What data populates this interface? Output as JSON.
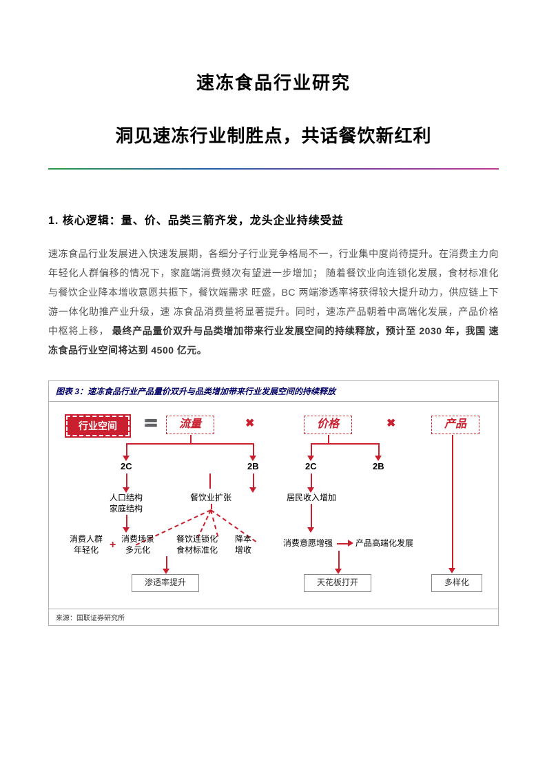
{
  "title": {
    "main": "速冻食品行业研究",
    "sub": "洞见速冻行业制胜点，共话餐饮新红利"
  },
  "section1": {
    "heading": "1. 核心逻辑：量、价、品类三箭齐发，龙头企业持续受益",
    "body_pre": "速冻食品行业发展进入快速发展期，各细分子行业竞争格局不一，行业集中度尚待提升。在消费主力向年轻化人群偏移的情况下，家庭端消费频次有望进一步增加； 随着餐饮业向连锁化发展，食材标准化与餐饮企业降本增收意愿共振下，餐饮端需求 旺盛，BC 两端渗透率将获得较大提升动力，供应链上下游一体化助推产业升级，速 冻食品消费量将显著提升。同时，速冻产品朝着中高端化发展，产品价格中枢将上移，",
    "body_bold": "最终产品量价双升与品类增加带来行业发展空间的持续释放，预计至 2030 年，我国 速冻食品行业空间将达到 4500 亿元。"
  },
  "figure": {
    "title": "图表 3：速冻食品行业产品量价双升与品类增加带来行业发展空间的持续释放",
    "source": "来源：国联证券研究所",
    "colors": {
      "accent": "#c91f2e",
      "border": "#b0b0b0",
      "title_text": "#000066"
    },
    "nodes": {
      "root": "行业空间",
      "op_eq": "🟰",
      "op_mul": "✖",
      "top": {
        "flow": "流量",
        "price": "价格",
        "product": "产品"
      },
      "mid": {
        "c2_a": "2C",
        "b2_a": "2B",
        "c2_b": "2C",
        "b2_b": "2B"
      },
      "sub": {
        "pop": "人口结构\n家庭结构",
        "catering": "餐饮业扩张",
        "income": "居民收入增加"
      },
      "leaves": {
        "consumer_young": "消费人群\n年轻化",
        "scene_multi": "消费场景\n多元化",
        "chain_std": "餐饮连锁化\n食材标准化",
        "cost_rev": "降本\n增收",
        "willing": "消费意愿增强",
        "premium": "产品高端化发展"
      },
      "bottom": {
        "penetration": "渗透率提升",
        "ceiling": "天花板打开",
        "diversify": "多样化"
      }
    }
  }
}
